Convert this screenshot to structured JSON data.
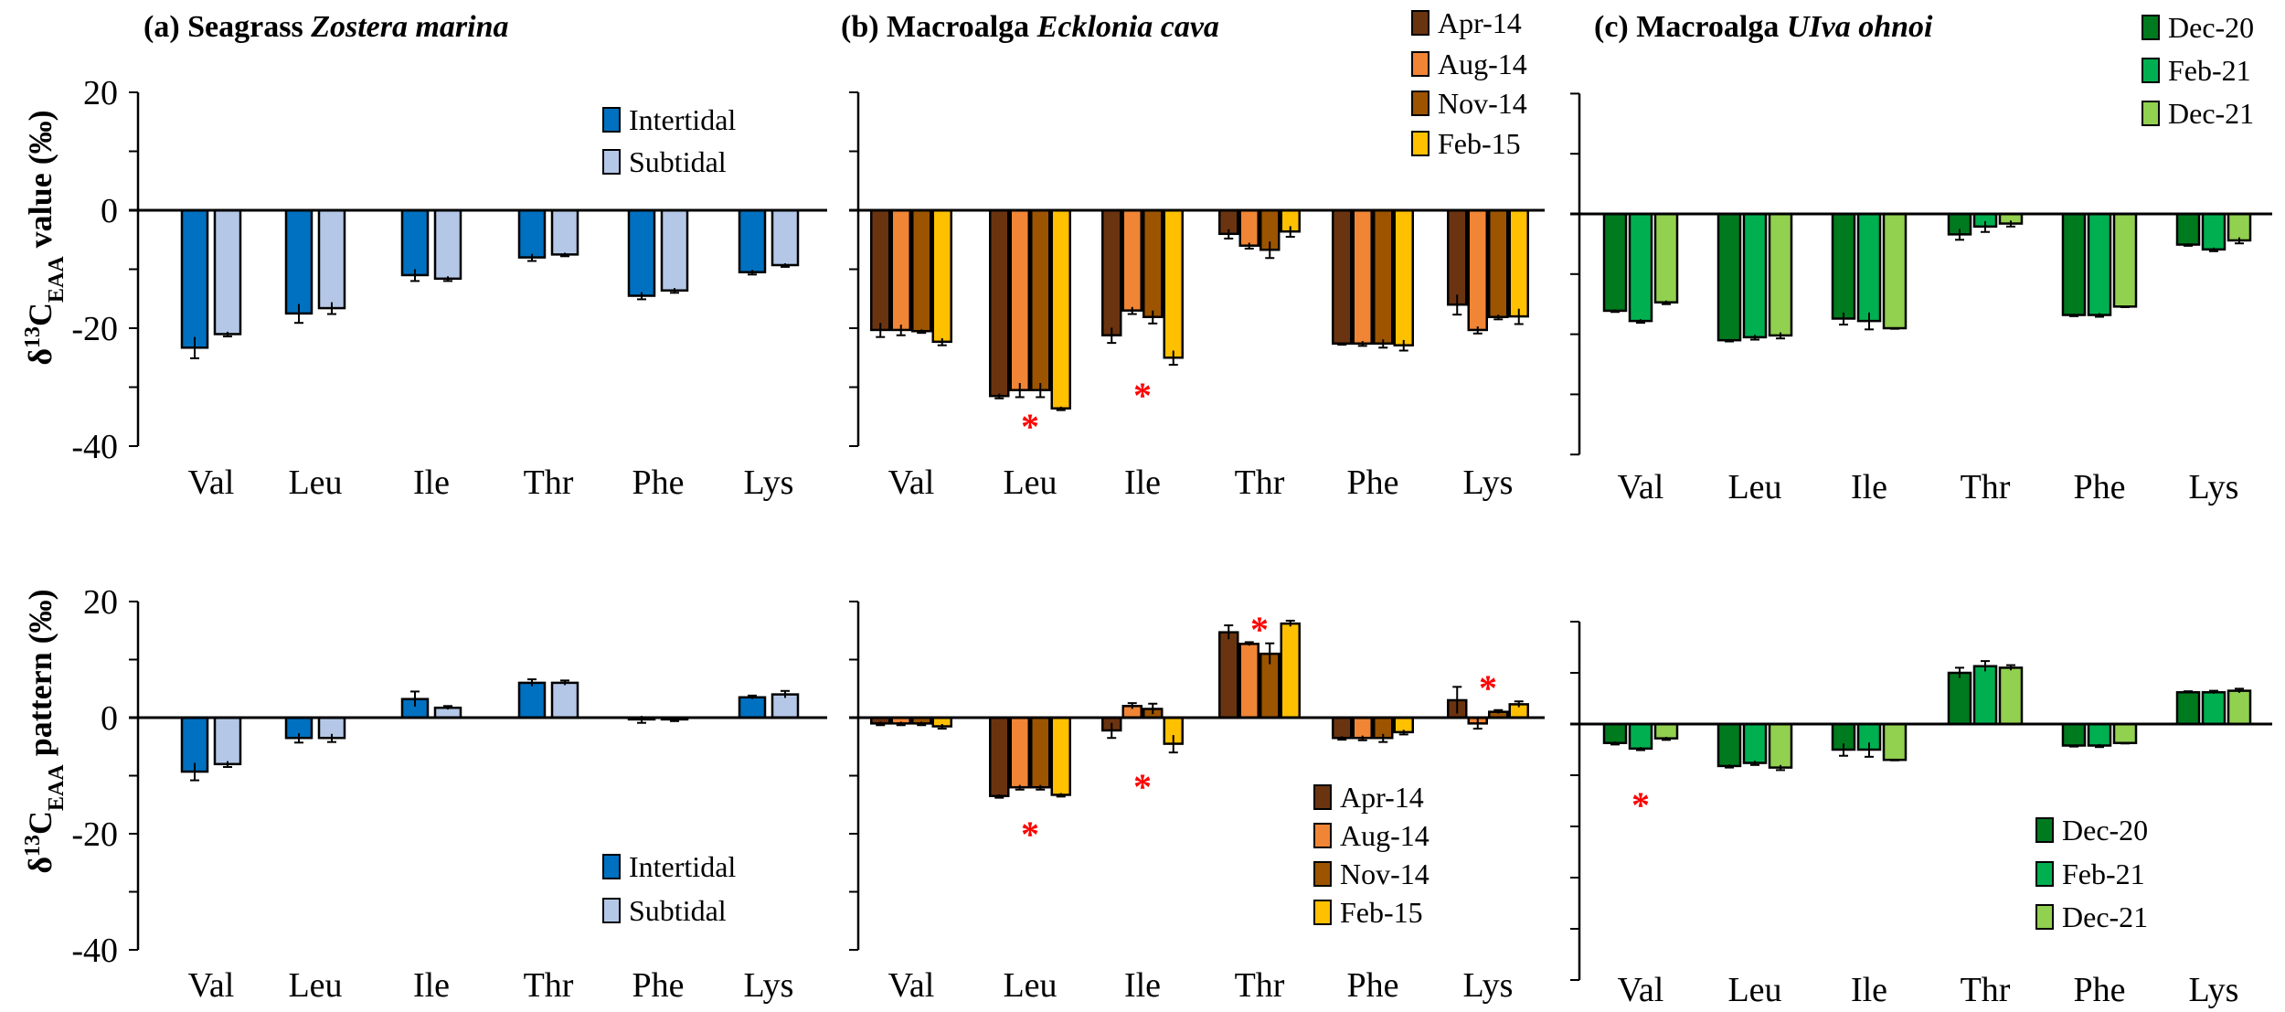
{
  "chart_data": [
    {
      "type": "bar",
      "id": "a-value",
      "title": "(a) Seagrass Zostera marina",
      "title_plain": "(a) Seagrass ",
      "title_italic": "Zostera marina",
      "ylabel": "δ13CEAA value (‰)",
      "ylim": [
        -40,
        20
      ],
      "yticks": [
        20,
        0,
        -20,
        -40
      ],
      "categories": [
        "Val",
        "Leu",
        "Ile",
        "Thr",
        "Phe",
        "Lys"
      ],
      "legend_position": "top-right",
      "series": [
        {
          "name": "Intertidal",
          "color": "#0070C0",
          "values": [
            -23.3,
            -17.5,
            -11.0,
            -8.0,
            -14.5,
            -10.5
          ],
          "errors": [
            1.8,
            1.6,
            1.0,
            0.6,
            0.6,
            0.4
          ]
        },
        {
          "name": "Subtidal",
          "color": "#B4C7E7",
          "values": [
            -21.0,
            -16.6,
            -11.6,
            -7.5,
            -13.6,
            -9.3
          ],
          "errors": [
            0.4,
            1.0,
            0.4,
            0.3,
            0.4,
            0.3
          ]
        }
      ],
      "significance": []
    },
    {
      "type": "bar",
      "id": "b-value",
      "title": "(b) Macroalga Ecklonia cava",
      "title_plain": "(b) Macroalga ",
      "title_italic": "Ecklonia cava",
      "ylim": [
        -40,
        20
      ],
      "yticks": [
        20,
        0,
        -20,
        -40
      ],
      "categories": [
        "Val",
        "Leu",
        "Ile",
        "Thr",
        "Phe",
        "Lys"
      ],
      "legend_position": "top-right",
      "series": [
        {
          "name": "Apr-14",
          "color": "#6B3410",
          "values": [
            -20.3,
            -31.5,
            -21.2,
            -4.0,
            -22.6,
            -16.0
          ],
          "errors": [
            1.2,
            0.4,
            1.3,
            0.8,
            0.2,
            1.7
          ]
        },
        {
          "name": "Aug-14",
          "color": "#F08536",
          "values": [
            -20.3,
            -30.5,
            -17.0,
            -6.0,
            -22.6,
            -20.3
          ],
          "errors": [
            0.9,
            1.2,
            0.6,
            0.5,
            0.4,
            0.6
          ]
        },
        {
          "name": "Nov-14",
          "color": "#9C5400",
          "values": [
            -20.5,
            -30.5,
            -18.1,
            -6.7,
            -22.6,
            -18.1
          ],
          "errors": [
            0.3,
            1.2,
            1.1,
            1.4,
            0.7,
            0.4
          ]
        },
        {
          "name": "Feb-15",
          "color": "#FFC000",
          "values": [
            -22.3,
            -33.6,
            -25.0,
            -3.6,
            -22.9,
            -18.0
          ],
          "errors": [
            0.6,
            0.3,
            1.2,
            0.9,
            0.9,
            1.3
          ]
        }
      ],
      "significance": [
        {
          "category": "Leu",
          "label": "*"
        },
        {
          "category": "Ile",
          "label": "*"
        }
      ]
    },
    {
      "type": "bar",
      "id": "c-value",
      "title": "(c) Macroalga UIva ohnoi",
      "title_plain": "(c) Macroalga ",
      "title_italic": "UIva ohnoi",
      "ylim": [
        -40,
        20
      ],
      "yticks": [
        20,
        0,
        -20,
        -40
      ],
      "categories": [
        "Val",
        "Leu",
        "Ile",
        "Thr",
        "Phe",
        "Lys"
      ],
      "legend_position": "top-right",
      "series": [
        {
          "name": "Dec-20",
          "color": "#007A1F",
          "values": [
            -16.1,
            -21.0,
            -17.4,
            -3.4,
            -16.8,
            -5.1
          ],
          "errors": [
            0.2,
            0.2,
            1.0,
            0.9,
            0.2,
            0.2
          ]
        },
        {
          "name": "Feb-21",
          "color": "#00B050",
          "values": [
            -17.8,
            -20.5,
            -17.8,
            -2.1,
            -16.8,
            -5.9
          ],
          "errors": [
            0.3,
            0.4,
            1.4,
            0.9,
            0.3,
            0.3
          ]
        },
        {
          "name": "Dec-21",
          "color": "#92D050",
          "values": [
            -14.7,
            -20.2,
            -19.0,
            -1.6,
            -15.4,
            -4.4
          ],
          "errors": [
            0.3,
            0.5,
            0.1,
            0.5,
            0.1,
            0.5
          ]
        }
      ],
      "significance": []
    },
    {
      "type": "bar",
      "id": "a-pattern",
      "ylabel": "δ13CEAA pattern (‰)",
      "ylim": [
        -40,
        20
      ],
      "yticks": [
        20,
        0,
        -20,
        -40
      ],
      "categories": [
        "Val",
        "Leu",
        "Ile",
        "Thr",
        "Phe",
        "Lys"
      ],
      "legend_position": "bottom-right",
      "series": [
        {
          "name": "Intertidal",
          "color": "#0070C0",
          "values": [
            -9.3,
            -3.5,
            3.2,
            6.0,
            -0.3,
            3.5
          ],
          "errors": [
            1.5,
            0.8,
            1.3,
            0.6,
            0.6,
            0.3
          ]
        },
        {
          "name": "Subtidal",
          "color": "#B4C7E7",
          "values": [
            -8.0,
            -3.5,
            1.7,
            6.0,
            -0.3,
            4.0
          ],
          "errors": [
            0.5,
            0.7,
            0.3,
            0.4,
            0.3,
            0.6
          ]
        }
      ],
      "significance": []
    },
    {
      "type": "bar",
      "id": "b-pattern",
      "ylim": [
        -40,
        20
      ],
      "yticks": [
        20,
        0,
        -20,
        -40
      ],
      "categories": [
        "Val",
        "Leu",
        "Ile",
        "Thr",
        "Phe",
        "Lys"
      ],
      "legend_position": "bottom-right",
      "series": [
        {
          "name": "Apr-14",
          "color": "#6B3410",
          "values": [
            -1.0,
            -13.5,
            -2.2,
            14.7,
            -3.5,
            3.0
          ],
          "errors": [
            0.3,
            0.3,
            1.3,
            1.2,
            0.3,
            2.3
          ]
        },
        {
          "name": "Aug-14",
          "color": "#F08536",
          "values": [
            -1.0,
            -12.0,
            2.0,
            12.7,
            -3.5,
            -1.0
          ],
          "errors": [
            0.3,
            0.4,
            0.5,
            0.3,
            0.4,
            0.9
          ]
        },
        {
          "name": "Nov-14",
          "color": "#9C5400",
          "values": [
            -1.0,
            -12.0,
            1.5,
            11.0,
            -3.5,
            1.0
          ],
          "errors": [
            0.3,
            0.4,
            0.9,
            1.8,
            0.7,
            0.3
          ]
        },
        {
          "name": "Feb-15",
          "color": "#FFC000",
          "values": [
            -1.5,
            -13.3,
            -4.5,
            16.2,
            -2.5,
            2.3
          ],
          "errors": [
            0.4,
            0.3,
            1.5,
            0.5,
            0.4,
            0.5
          ]
        }
      ],
      "significance": [
        {
          "category": "Leu",
          "label": "*"
        },
        {
          "category": "Ile",
          "label": "*"
        },
        {
          "category": "Thr",
          "label": "*"
        },
        {
          "category": "Lys",
          "label": "*"
        }
      ]
    },
    {
      "type": "bar",
      "id": "c-pattern",
      "ylim": [
        -50,
        20
      ],
      "yticks": [
        20,
        0,
        -20,
        -40
      ],
      "categories": [
        "Val",
        "Leu",
        "Ile",
        "Thr",
        "Phe",
        "Lys"
      ],
      "legend_position": "bottom-right",
      "series": [
        {
          "name": "Dec-20",
          "color": "#007A1F",
          "values": [
            -3.7,
            -8.2,
            -5.0,
            10.0,
            -4.2,
            6.2
          ],
          "errors": [
            0.3,
            0.3,
            1.2,
            1.0,
            0.2,
            0.2
          ]
        },
        {
          "name": "Feb-21",
          "color": "#00B050",
          "values": [
            -4.8,
            -7.6,
            -5.0,
            11.3,
            -4.2,
            6.2
          ],
          "errors": [
            0.3,
            0.4,
            1.4,
            1.0,
            0.3,
            0.3
          ]
        },
        {
          "name": "Dec-21",
          "color": "#92D050",
          "values": [
            -2.8,
            -8.5,
            -7.0,
            11.0,
            -3.7,
            6.5
          ],
          "errors": [
            0.3,
            0.5,
            0.1,
            0.5,
            0.1,
            0.4
          ]
        }
      ],
      "significance": [
        {
          "category": "Val",
          "label": "*"
        }
      ]
    }
  ]
}
